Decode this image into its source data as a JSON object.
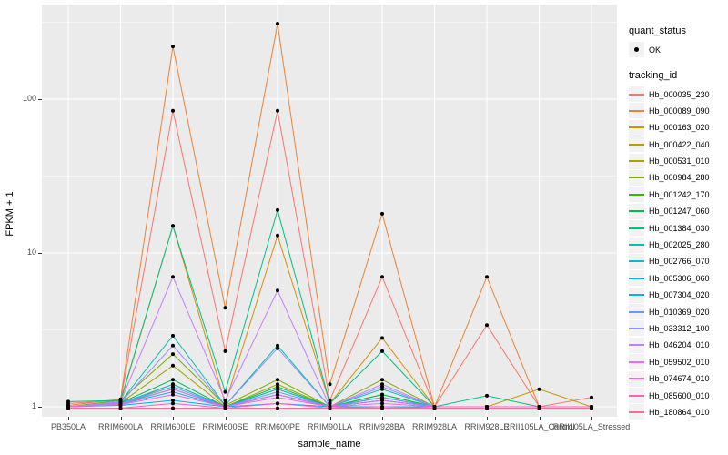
{
  "chart_data": {
    "type": "line",
    "title": "",
    "xlabel": "sample_name",
    "ylabel": "FPKM + 1",
    "y_scale": "log10",
    "legend_position": "right",
    "panel_bg": "#EBEBEB",
    "grid_color": "#FFFFFF",
    "point_marker": {
      "shape": "filled-circle",
      "color": "#000000"
    },
    "y_ticks": [
      {
        "label": "1",
        "value": 1
      },
      {
        "label": "10",
        "value": 10
      },
      {
        "label": "100",
        "value": 100
      }
    ],
    "y_minor_gridlines": [
      3.162,
      31.62,
      316.2
    ],
    "categories": [
      "PB350LA",
      "RRIM600LA",
      "RRIM600LE",
      "RRIM600SE",
      "RRIM600PE",
      "RRIM901LA",
      "RRIM928BA",
      "RRIM928LA",
      "RRIM928LE",
      "RRII105LA_Control",
      "RRII105LA_Stressed"
    ],
    "series": [
      {
        "name": "Hb_000035_230",
        "color": "#F8766D",
        "values": [
          1.05,
          1.1,
          84,
          2.3,
          84,
          1.1,
          7.0,
          1.0,
          3.4,
          1.0,
          1.15
        ]
      },
      {
        "name": "Hb_000089_090",
        "color": "#EA8331",
        "values": [
          1.02,
          1.12,
          220,
          4.4,
          310,
          1.4,
          18.0,
          1.0,
          7.0,
          1.0,
          1.0
        ]
      },
      {
        "name": "Hb_000163_020",
        "color": "#D89000",
        "values": [
          1.0,
          1.08,
          15,
          1.05,
          13,
          1.05,
          2.8,
          1.0,
          1.0,
          1.0,
          1.0
        ]
      },
      {
        "name": "Hb_000422_040",
        "color": "#C09B00",
        "values": [
          1.0,
          1.03,
          1.4,
          1.0,
          1.3,
          1.0,
          1.15,
          1.0,
          1.0,
          1.3,
          1.0
        ]
      },
      {
        "name": "Hb_000531_010",
        "color": "#A3A500",
        "values": [
          1.0,
          1.06,
          1.85,
          1.0,
          1.4,
          1.0,
          1.2,
          1.0,
          1.0,
          1.0,
          1.0
        ]
      },
      {
        "name": "Hb_000984_280",
        "color": "#7CAE00",
        "values": [
          1.0,
          1.1,
          2.2,
          1.02,
          1.5,
          1.0,
          1.5,
          1.0,
          1.0,
          1.0,
          1.0
        ]
      },
      {
        "name": "Hb_001242_170",
        "color": "#39B600",
        "values": [
          1.0,
          1.05,
          1.3,
          1.0,
          1.2,
          1.0,
          1.1,
          1.0,
          1.0,
          1.0,
          1.0
        ]
      },
      {
        "name": "Hb_001247_060",
        "color": "#00BB4E",
        "values": [
          1.0,
          1.06,
          1.5,
          1.0,
          1.35,
          1.0,
          1.2,
          1.0,
          1.0,
          1.0,
          1.0
        ]
      },
      {
        "name": "Hb_001384_030",
        "color": "#00C087",
        "values": [
          1.08,
          1.1,
          15,
          1.25,
          19,
          1.05,
          2.3,
          1.0,
          1.18,
          1.0,
          1.0
        ]
      },
      {
        "name": "Hb_002025_280",
        "color": "#00C0B2",
        "values": [
          1.0,
          1.08,
          2.9,
          1.02,
          2.5,
          1.0,
          1.3,
          1.0,
          1.0,
          1.0,
          1.0
        ]
      },
      {
        "name": "Hb_002766_070",
        "color": "#00BDD2",
        "values": [
          1.0,
          1.05,
          1.4,
          1.0,
          1.3,
          1.0,
          1.15,
          1.0,
          1.0,
          1.0,
          1.0
        ]
      },
      {
        "name": "Hb_005306_060",
        "color": "#00B5EC",
        "values": [
          1.0,
          1.04,
          1.25,
          1.0,
          1.2,
          1.0,
          1.1,
          1.0,
          1.0,
          1.0,
          1.0
        ]
      },
      {
        "name": "Hb_007304_020",
        "color": "#00B0F6",
        "values": [
          1.0,
          1.02,
          1.1,
          1.0,
          1.05,
          1.0,
          1.0,
          1.0,
          1.0,
          1.0,
          1.0
        ]
      },
      {
        "name": "Hb_010369_020",
        "color": "#619CFF",
        "values": [
          1.0,
          1.05,
          1.35,
          1.0,
          1.25,
          1.0,
          1.15,
          1.0,
          1.0,
          1.0,
          1.0
        ]
      },
      {
        "name": "Hb_033312_100",
        "color": "#9590FF",
        "values": [
          1.0,
          1.06,
          2.5,
          1.02,
          2.4,
          1.0,
          1.35,
          1.0,
          1.0,
          1.0,
          1.0
        ]
      },
      {
        "name": "Hb_046204_010",
        "color": "#C77CFF",
        "values": [
          1.0,
          1.08,
          7.0,
          1.1,
          5.7,
          1.0,
          1.4,
          1.0,
          1.0,
          1.0,
          1.0
        ]
      },
      {
        "name": "Hb_059502_010",
        "color": "#E76BF3",
        "values": [
          1.0,
          1.04,
          1.3,
          1.0,
          1.2,
          1.0,
          1.1,
          1.0,
          1.0,
          1.0,
          1.0
        ]
      },
      {
        "name": "Hb_074674_010",
        "color": "#F763E0",
        "values": [
          1.0,
          1.03,
          1.2,
          1.0,
          1.15,
          1.0,
          1.05,
          1.0,
          1.0,
          1.0,
          1.0
        ]
      },
      {
        "name": "Hb_085600_010",
        "color": "#FF62BC",
        "values": [
          0.98,
          0.98,
          1.05,
          0.98,
          1.05,
          0.98,
          1.0,
          0.98,
          0.98,
          0.98,
          0.98
        ]
      },
      {
        "name": "Hb_180864_010",
        "color": "#FF6B94",
        "values": [
          0.98,
          0.98,
          0.98,
          0.98,
          0.98,
          0.98,
          0.98,
          0.98,
          0.98,
          0.98,
          0.98
        ]
      }
    ]
  },
  "legend": {
    "quant_status": {
      "title": "quant_status",
      "items": [
        {
          "label": "OK",
          "marker": "black-point"
        }
      ]
    },
    "tracking_id": {
      "title": "tracking_id"
    }
  }
}
